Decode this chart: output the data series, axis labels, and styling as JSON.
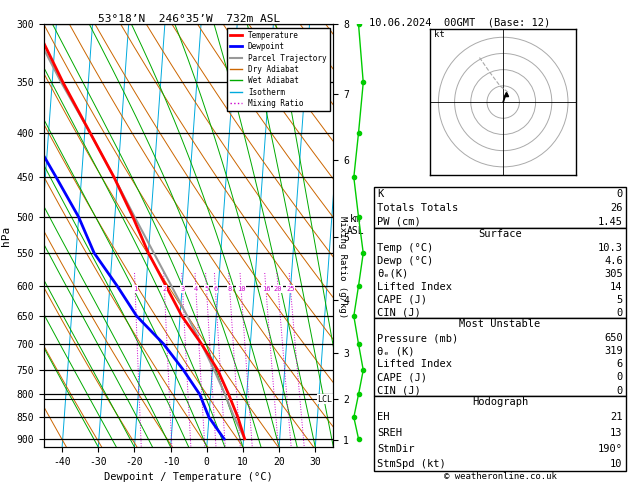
{
  "title_left": "53°18’N  246°35’W  732m ASL",
  "title_right": "10.06.2024  00GMT  (Base: 12)",
  "xlabel": "Dewpoint / Temperature (°C)",
  "ylabel_left": "hPa",
  "ylabel_right_km": "km\nASL",
  "ylabel_mixing": "Mixing Ratio (g/kg)",
  "pressure_ticks": [
    300,
    350,
    400,
    450,
    500,
    550,
    600,
    650,
    700,
    750,
    800,
    850,
    900
  ],
  "temp_min": -45,
  "temp_max": 35,
  "p_min": 300,
  "p_max": 920,
  "skew_factor": 7.5,
  "temp_color": "#ff0000",
  "dewp_color": "#0000ff",
  "parcel_color": "#999999",
  "dry_adiabat_color": "#cc6600",
  "wet_adiabat_color": "#00aa00",
  "isotherm_color": "#00aadd",
  "mixing_ratio_color": "#cc00cc",
  "km_pressures": [
    900,
    800,
    700,
    600,
    500,
    400,
    330,
    270
  ],
  "km_labels": [
    "1",
    "2",
    "3",
    "4",
    "5",
    "6",
    "7",
    "8"
  ],
  "mixing_ratio_values": [
    1,
    2,
    3,
    4,
    5,
    6,
    8,
    10,
    16,
    20,
    25
  ],
  "lcl_pressure": 810,
  "temp_profile_p": [
    900,
    850,
    800,
    750,
    700,
    650,
    600,
    550,
    500,
    450,
    400,
    350,
    300
  ],
  "temp_profile_T": [
    10.3,
    8.0,
    5.0,
    1.5,
    -3.5,
    -9.5,
    -14.5,
    -20.0,
    -25.0,
    -31.0,
    -38.5,
    -47.0,
    -56.0
  ],
  "dewp_profile_p": [
    900,
    850,
    800,
    750,
    700,
    650,
    600,
    550,
    500,
    450,
    400,
    350,
    300
  ],
  "dewp_profile_T": [
    4.6,
    0.0,
    -3.0,
    -8.0,
    -14.0,
    -22.0,
    -28.0,
    -35.0,
    -40.0,
    -47.0,
    -55.0,
    -60.0,
    -66.0
  ],
  "parcel_p": [
    900,
    850,
    800,
    750,
    700,
    650,
    600,
    550,
    500,
    450,
    400,
    350,
    300
  ],
  "parcel_T": [
    10.3,
    7.0,
    4.0,
    0.5,
    -3.5,
    -8.0,
    -13.0,
    -18.5,
    -24.5,
    -31.0,
    -38.5,
    -47.5,
    -57.0
  ],
  "stats": {
    "K": 0,
    "Totals_Totals": 26,
    "PW_cm": 1.45,
    "Surface_Temp": 10.3,
    "Surface_Dewp": 4.6,
    "Surface_thetae": 305,
    "Lifted_Index": 14,
    "CAPE": 5,
    "CIN": 0,
    "MU_Pressure": 650,
    "MU_thetae": 319,
    "MU_LI": 6,
    "MU_CAPE": 0,
    "MU_CIN": 0,
    "EH": 21,
    "SREH": 13,
    "StmDir": 190,
    "StmSpd": 10
  }
}
